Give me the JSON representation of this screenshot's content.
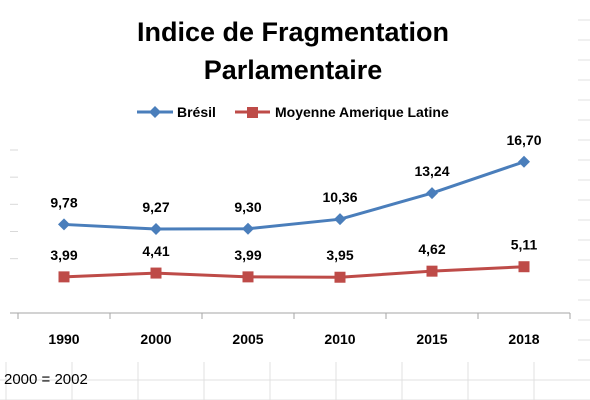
{
  "note": "2000 = 2002",
  "chart_data": {
    "type": "line",
    "title_lines": [
      "Indice de Fragmentation",
      "Parlamentaire"
    ],
    "categories": [
      "1990",
      "2000",
      "2005",
      "2010",
      "2015",
      "2018"
    ],
    "series": [
      {
        "name": "Brésil",
        "values": [
          9.78,
          9.27,
          9.3,
          10.36,
          13.24,
          16.7
        ],
        "labels": [
          "9,78",
          "9,27",
          "9,30",
          "10,36",
          "13,24",
          "16,70"
        ],
        "color": "#4a7ebb",
        "marker": "diamond"
      },
      {
        "name": "Moyenne Amerique Latine",
        "values": [
          3.99,
          4.41,
          3.99,
          3.95,
          4.62,
          5.11
        ],
        "labels": [
          "3,99",
          "4,41",
          "3,99",
          "3,95",
          "4,62",
          "5,11"
        ],
        "color": "#be4b48",
        "marker": "square"
      }
    ],
    "ylim": [
      0,
      18
    ],
    "grid": true,
    "legend": "top"
  }
}
